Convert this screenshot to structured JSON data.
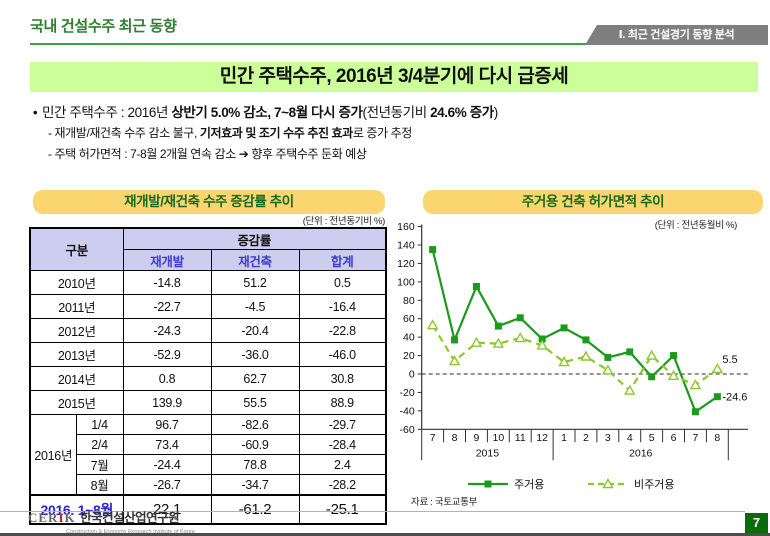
{
  "header": {
    "title": "국내 건설수주 최근 동향",
    "section_tab": "Ⅰ. 최근 건설경기 동향 분석"
  },
  "banner": {
    "title": "민간 주택수주, 2016년 3/4분기에 다시 급증세"
  },
  "bullets": {
    "line1": [
      "민간  주택수주 : 2016년 ",
      "상반기 5.0% 감소",
      ", ",
      "7~8월 다시 증가",
      "(전년동기비 ",
      "24.6% 증가",
      ")"
    ],
    "line2": [
      "- 재개발/재건축 수주  감소 불구, ",
      "기저효과 및 조기 수주 추진 효과",
      "로 증가 추정"
    ],
    "line3": [
      "- 주택 허가면적 : 7-8월 2개월 연속 감소 ",
      "➔",
      " 향후 주택수주 둔화 예상"
    ]
  },
  "left_panel": {
    "title": "재개발/재건축 수주 증감률 추이",
    "unit": "(단위 : 전년동기비 %)"
  },
  "right_panel": {
    "title": "주거용 건축 허가면적 추이",
    "unit": "(단위 : 전년동월비 %)"
  },
  "table": {
    "col_group_label": "구분",
    "col_span_label": "증감률",
    "sub_headers": [
      "재개발",
      "재건축",
      "합계"
    ],
    "rows": [
      {
        "label": "2010년",
        "values": [
          "-14.8",
          "51.2",
          "0.5"
        ]
      },
      {
        "label": "2011년",
        "values": [
          "-22.7",
          "-4.5",
          "-16.4"
        ]
      },
      {
        "label": "2012년",
        "values": [
          "-24.3",
          "-20.4",
          "-22.8"
        ]
      },
      {
        "label": "2013년",
        "values": [
          "-52.9",
          "-36.0",
          "-46.0"
        ]
      },
      {
        "label": "2014년",
        "values": [
          "0.8",
          "62.7",
          "30.8"
        ]
      },
      {
        "label": "2015년",
        "values": [
          "139.9",
          "55.5",
          "88.9"
        ]
      }
    ],
    "group_2016": {
      "label": "2016년",
      "rows": [
        {
          "label": "1/4",
          "values": [
            "96.7",
            "-82.6",
            "-29.7"
          ]
        },
        {
          "label": "2/4",
          "values": [
            "73.4",
            "-60.9",
            "-28.4"
          ]
        },
        {
          "label": "7월",
          "values": [
            "-24.4",
            "78.8",
            "2.4"
          ]
        },
        {
          "label": "8월",
          "values": [
            "-26.7",
            "-34.7",
            "-28.2"
          ]
        }
      ]
    },
    "total_row": {
      "label": "2016. 1~8월",
      "values": [
        "22.1",
        "-61.2",
        "-25.1"
      ]
    }
  },
  "chart_data": {
    "type": "line",
    "title": "주거용 건축 허가면적 추이",
    "unit": "(단위 : 전년동월비 %)",
    "x": [
      "7",
      "8",
      "9",
      "10",
      "11",
      "12",
      "1",
      "2",
      "3",
      "4",
      "5",
      "6",
      "7",
      "8"
    ],
    "year_groups": [
      {
        "label": "2015",
        "span": 6
      },
      {
        "label": "2016",
        "span": 8
      }
    ],
    "ylim": [
      -60,
      160
    ],
    "ytick": 20,
    "zero_line": true,
    "legend_position": "bottom",
    "series": [
      {
        "name": "주거용",
        "marker": "square",
        "style": "solid",
        "color": "#1b9b1b",
        "values": [
          135,
          37,
          95,
          52,
          61,
          38,
          50,
          37,
          18,
          24,
          -3,
          20,
          -41,
          -24.6
        ],
        "end_label": "-24.6"
      },
      {
        "name": "비주거용",
        "marker": "triangle",
        "style": "dashed",
        "color": "#8cc72c",
        "values": [
          53,
          14,
          34,
          33,
          39,
          31,
          13,
          19,
          4,
          -18,
          20,
          -2,
          -12,
          5.5
        ],
        "end_label": "5.5"
      }
    ],
    "source": "자료 : 국토교통부"
  },
  "footer": {
    "logo_cerik": "CERIK",
    "logo_name": "한국건설산업연구원",
    "logo_sub": "Construction &amp; Economy Research Institute of Korea",
    "page": "7"
  }
}
